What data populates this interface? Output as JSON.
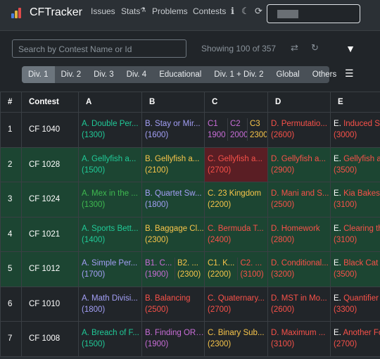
{
  "nav": {
    "brand": "CFTracker",
    "links": [
      "Issues",
      "Stats",
      "Problems",
      "Contests"
    ],
    "info_icon": "ℹ",
    "moon_icon": "☾",
    "refresh_icon": "⟳"
  },
  "toolbar": {
    "search_placeholder": "Search by Contest Name or Id",
    "showing": "Showing 100 of 357",
    "shuffle_icon": "⇄",
    "reset_icon": "↻",
    "filter_icon": "▼",
    "menu_icon": "☰",
    "divisions": [
      "Div. 1",
      "Div. 2",
      "Div. 3",
      "Div. 4",
      "Educational",
      "Div. 1 + Div. 2",
      "Global",
      "Others"
    ]
  },
  "table": {
    "headers": [
      "#",
      "Contest",
      "A",
      "B",
      "C",
      "D",
      "E"
    ],
    "rows": [
      {
        "num": "1",
        "contest": "CF 1040",
        "style": "dark",
        "A": {
          "name": "A. Double Per...",
          "rating": "(1300)",
          "color": "cyan"
        },
        "B": {
          "name": "B. Stay or Mir...",
          "rating": "(1600)",
          "color": "blue"
        },
        "C_split": [
          {
            "name": "C1",
            "rating": "1900",
            "color": "violet"
          },
          {
            "name": "C2",
            "rating": "2000",
            "color": "violet"
          },
          {
            "name": "C3",
            "rating": "2300",
            "color": "orange"
          }
        ],
        "D": {
          "name": "D. Permutatio...",
          "rating": "(2600)",
          "color": "red"
        },
        "E": {
          "prefix": "E.",
          "name": "Induced Su",
          "rating": "(3000)",
          "color": "red"
        }
      },
      {
        "num": "2",
        "contest": "CF 1028",
        "style": "green",
        "A": {
          "name": "A. Gellyfish a...",
          "rating": "(1500)",
          "color": "cyan"
        },
        "B": {
          "name": "B. Gellyfish a...",
          "rating": "(2100)",
          "color": "orange"
        },
        "C": {
          "name": "C. Gellyfish a...",
          "rating": "(2700)",
          "color": "red",
          "red": true
        },
        "D": {
          "name": "D. Gellyfish a...",
          "rating": "(2900)",
          "color": "red"
        },
        "E": {
          "prefix": "E.",
          "name": "Gellyfish a",
          "rating": "(3500)",
          "color": "red"
        }
      },
      {
        "num": "3",
        "contest": "CF 1024",
        "style": "green",
        "A": {
          "name": "A. Mex in the ...",
          "rating": "(1300)",
          "color": "green"
        },
        "B": {
          "name": "B. Quartet Sw...",
          "rating": "(1800)",
          "color": "blue"
        },
        "C": {
          "name": "C. 23 Kingdom",
          "rating": "(2200)",
          "color": "orange"
        },
        "D": {
          "name": "D. Mani and S...",
          "rating": "(2500)",
          "color": "red"
        },
        "E": {
          "prefix": "E.",
          "name": "Kia Bakes",
          "rating": "(3100)",
          "color": "red"
        }
      },
      {
        "num": "4",
        "contest": "CF 1021",
        "style": "green",
        "A": {
          "name": "A. Sports Bett...",
          "rating": "(1400)",
          "color": "cyan"
        },
        "B": {
          "name": "B. Baggage Cl...",
          "rating": "(2300)",
          "color": "orange"
        },
        "C": {
          "name": "C. Bermuda T...",
          "rating": "(2400)",
          "color": "red"
        },
        "D": {
          "name": "D. Homework",
          "rating": "(2800)",
          "color": "red"
        },
        "E": {
          "prefix": "E.",
          "name": "Clearing th",
          "rating": "(3100)",
          "color": "red"
        }
      },
      {
        "num": "5",
        "contest": "CF 1012",
        "style": "green",
        "A": {
          "name": "A. Simple Per...",
          "rating": "(1700)",
          "color": "blue"
        },
        "B_split": [
          {
            "name": "B1. C...",
            "rating": "(1900)",
            "color": "violet"
          },
          {
            "name": "B2. ...",
            "rating": "(2300)",
            "color": "orange"
          }
        ],
        "C_split": [
          {
            "name": "C1. K...",
            "rating": "(2200)",
            "color": "orange"
          },
          {
            "name": "C2. ...",
            "rating": "(3100)",
            "color": "red"
          }
        ],
        "D": {
          "name": "D. Conditional...",
          "rating": "(3200)",
          "color": "red"
        },
        "E": {
          "prefix": "E.",
          "name": "Black Cat C",
          "rating": "(3500)",
          "color": "red"
        }
      },
      {
        "num": "6",
        "contest": "CF 1010",
        "style": "dark",
        "A": {
          "name": "A. Math Divisi...",
          "rating": "(1800)",
          "color": "blue"
        },
        "B": {
          "name": "B. Balancing",
          "rating": "(2500)",
          "color": "red"
        },
        "C": {
          "name": "C. Quaternary...",
          "rating": "(2700)",
          "color": "red"
        },
        "D": {
          "name": "D. MST in Mo...",
          "rating": "(2600)",
          "color": "red"
        },
        "E": {
          "prefix": "E.",
          "name": "Quantifier",
          "rating": "(3300)",
          "color": "red"
        }
      },
      {
        "num": "7",
        "contest": "CF 1008",
        "style": "dark",
        "A": {
          "name": "A. Breach of F...",
          "rating": "(1500)",
          "color": "cyan"
        },
        "B": {
          "name": "B. Finding OR ...",
          "rating": "(1900)",
          "color": "violet"
        },
        "C": {
          "name": "C. Binary Sub...",
          "rating": "(2300)",
          "color": "orange"
        },
        "D": {
          "name": "D. Maximum ...",
          "rating": "(3100)",
          "color": "red"
        },
        "E": {
          "prefix": "E.",
          "name": "Another Fo",
          "rating": "(2700)",
          "color": "red"
        }
      }
    ]
  },
  "colors": {
    "cyan": "#20c997",
    "green": "#3fb950",
    "blue": "#a39ff6",
    "violet": "#c86dd7",
    "orange": "#f8c54a",
    "red": "#f85149",
    "row_green": "#1c4532",
    "cell_red": "#5a1e24"
  }
}
